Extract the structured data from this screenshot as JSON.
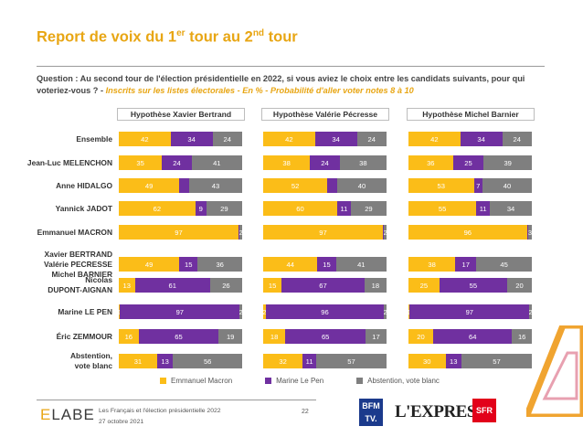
{
  "header": {
    "title_pre": "Report de voix du 1",
    "title_sup1": "er",
    "title_mid": " tour au 2",
    "title_sup2": "nd",
    "title_post": " tour",
    "question": "Question : Au second tour de l'élection présidentielle en 2022, si vous aviez le choix entre les candidats suivants, pour qui voteriez-vous ? - ",
    "question_italic": "Inscrits sur les listes électorales - En % - Probabilité d'aller voter notes 8 à 10"
  },
  "legend": [
    {
      "label": "Emmanuel Macron",
      "color": "#fbbd18"
    },
    {
      "label": "Marine Le Pen",
      "color": "#7030a0"
    },
    {
      "label": "Abstention, vote blanc",
      "color": "#7f7f7f"
    }
  ],
  "chart_data": {
    "type": "bar",
    "orientation": "horizontal",
    "stacked": true,
    "categories": [
      "Ensemble",
      "Jean-Luc MELENCHON",
      "Anne HIDALGO",
      "Yannick JADOT",
      "Emmanuel MACRON",
      "Xavier BERTRAND Valérie PECRESSE Michel BARNIER",
      "Nicolas DUPONT-AIGNAN",
      "Marine LE PEN",
      "Éric ZEMMOUR",
      "Abstention, vote blanc"
    ],
    "category_lines": [
      [
        "Ensemble"
      ],
      [
        "Jean-Luc MELENCHON"
      ],
      [
        "Anne HIDALGO"
      ],
      [
        "Yannick JADOT"
      ],
      [
        "Emmanuel MACRON"
      ],
      [
        "Xavier BERTRAND",
        "Valérie PECRESSE",
        "Michel BARNIER"
      ],
      [
        "Nicolas",
        "DUPONT-AIGNAN"
      ],
      [
        "Marine LE PEN"
      ],
      [
        "Éric ZEMMOUR"
      ],
      [
        "Abstention,",
        "vote blanc"
      ]
    ],
    "panels": [
      {
        "title": "Hypothèse Xavier Bertrand",
        "series": [
          {
            "name": "Emmanuel Macron",
            "values": [
              42,
              35,
              49,
              62,
              97,
              49,
              13,
              1,
              16,
              31
            ]
          },
          {
            "name": "Marine Le Pen",
            "values": [
              34,
              24,
              8,
              9,
              1,
              15,
              61,
              97,
              65,
              13
            ]
          },
          {
            "name": "Abstention, vote blanc",
            "values": [
              24,
              41,
              43,
              29,
              2,
              36,
              26,
              2,
              19,
              56
            ]
          }
        ],
        "labels": [
          [
            "42",
            "34",
            "24"
          ],
          [
            "35",
            "24",
            "41"
          ],
          [
            "49",
            "",
            "43"
          ],
          [
            "62",
            "9",
            "29"
          ],
          [
            "97",
            "",
            "2"
          ],
          [
            "49",
            "15",
            "36"
          ],
          [
            "13",
            "61",
            "26"
          ],
          [
            "1",
            "97",
            "2"
          ],
          [
            "16",
            "65",
            "19"
          ],
          [
            "31",
            "13",
            "56"
          ]
        ]
      },
      {
        "title": "Hypothèse Valérie Pécresse",
        "series": [
          {
            "name": "Emmanuel Macron",
            "values": [
              42,
              38,
              52,
              60,
              97,
              44,
              15,
              2,
              18,
              32
            ]
          },
          {
            "name": "Marine Le Pen",
            "values": [
              34,
              24,
              8,
              11,
              1,
              15,
              67,
              96,
              65,
              11
            ]
          },
          {
            "name": "Abstention, vote blanc",
            "values": [
              24,
              38,
              40,
              29,
              2,
              41,
              18,
              2,
              17,
              57
            ]
          }
        ],
        "labels": [
          [
            "42",
            "34",
            "24"
          ],
          [
            "38",
            "24",
            "38"
          ],
          [
            "52",
            "",
            "40"
          ],
          [
            "60",
            "11",
            "29"
          ],
          [
            "97",
            "",
            "2"
          ],
          [
            "44",
            "15",
            "41"
          ],
          [
            "15",
            "67",
            "18"
          ],
          [
            "2",
            "96",
            "2"
          ],
          [
            "18",
            "65",
            "17"
          ],
          [
            "32",
            "11",
            "57"
          ]
        ]
      },
      {
        "title": "Hypothèse Michel Barnier",
        "series": [
          {
            "name": "Emmanuel Macron",
            "values": [
              42,
              36,
              53,
              55,
              96,
              38,
              25,
              1,
              20,
              30
            ]
          },
          {
            "name": "Marine Le Pen",
            "values": [
              34,
              25,
              7,
              11,
              1,
              17,
              55,
              97,
              64,
              13
            ]
          },
          {
            "name": "Abstention, vote blanc",
            "values": [
              24,
              39,
              40,
              34,
              3,
              45,
              20,
              2,
              16,
              57
            ]
          }
        ],
        "labels": [
          [
            "42",
            "34",
            "24"
          ],
          [
            "36",
            "25",
            "39"
          ],
          [
            "53",
            "7",
            "40"
          ],
          [
            "55",
            "11",
            "34"
          ],
          [
            "96",
            "",
            "3"
          ],
          [
            "38",
            "17",
            "45"
          ],
          [
            "25",
            "55",
            "20"
          ],
          [
            "1",
            "97",
            "2"
          ],
          [
            "20",
            "64",
            "16"
          ],
          [
            "30",
            "13",
            "57"
          ]
        ]
      }
    ],
    "xlim": [
      0,
      100
    ]
  },
  "footer": {
    "brand_e": "E",
    "brand_rest": "LABE",
    "line1": "Les Français et l'élection présidentielle 2022",
    "line2": "27 octobre 2021",
    "page": "22",
    "bfm_top": "BFM",
    "bfm_bottom": "TV.",
    "express": "L'EXPRESS",
    "sfr": "SFR"
  }
}
